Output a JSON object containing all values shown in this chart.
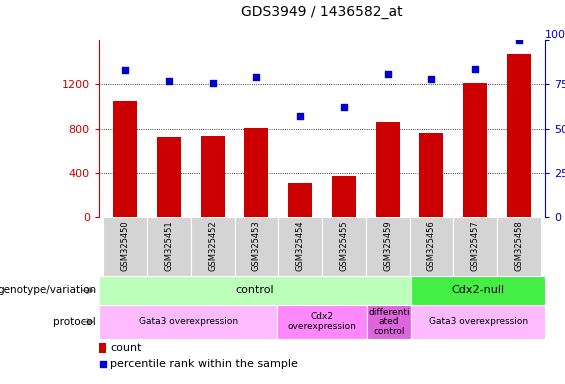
{
  "title": "GDS3949 / 1436582_at",
  "samples": [
    "GSM325450",
    "GSM325451",
    "GSM325452",
    "GSM325453",
    "GSM325454",
    "GSM325455",
    "GSM325459",
    "GSM325456",
    "GSM325457",
    "GSM325458"
  ],
  "counts": [
    1050,
    720,
    730,
    810,
    310,
    375,
    860,
    760,
    1210,
    1480
  ],
  "percentiles": [
    83,
    77,
    76,
    79,
    57,
    62,
    81,
    78,
    84,
    100
  ],
  "ylim_left": [
    0,
    1600
  ],
  "ylim_right": [
    0,
    100
  ],
  "yticks_left": [
    0,
    400,
    800,
    1200
  ],
  "yticks_right": [
    0,
    25,
    50,
    75,
    100
  ],
  "bar_color": "#cc0000",
  "dot_color": "#0000cc",
  "bg_color": "#ffffff",
  "genotype_data": [
    {
      "start": 0,
      "end": 7,
      "label": "control",
      "color": "#bbffbb"
    },
    {
      "start": 7,
      "end": 10,
      "label": "Cdx2-null",
      "color": "#44ee44"
    }
  ],
  "protocol_data": [
    {
      "start": 0,
      "end": 4,
      "label": "Gata3 overexpression",
      "color": "#ffbbff"
    },
    {
      "start": 4,
      "end": 6,
      "label": "Cdx2\noverexpression",
      "color": "#ff88ff"
    },
    {
      "start": 6,
      "end": 7,
      "label": "differenti\nated\ncontrol",
      "color": "#dd66dd"
    },
    {
      "start": 7,
      "end": 10,
      "label": "Gata3 overexpression",
      "color": "#ffbbff"
    }
  ],
  "title_fontsize": 10,
  "axis_fontsize": 8,
  "sample_fontsize": 6,
  "label_fontsize": 7.5,
  "row_label_fontsize": 8
}
